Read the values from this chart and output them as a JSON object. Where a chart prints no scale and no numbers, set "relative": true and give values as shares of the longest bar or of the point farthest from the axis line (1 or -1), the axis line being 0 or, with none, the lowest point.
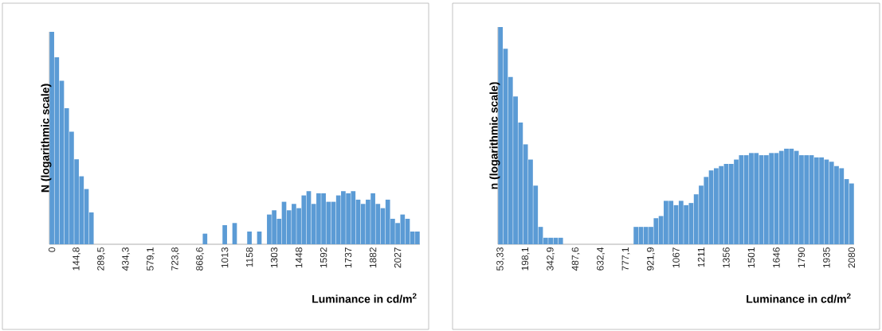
{
  "chart_data": [
    {
      "type": "bar",
      "relative": true,
      "color": "#5b9bd5",
      "ylabel": "N  (logarithmic scale)",
      "xlabel": "Luminance in cd/m$^{2}$",
      "categories": [
        "0",
        null,
        null,
        null,
        null,
        "144,8",
        null,
        null,
        null,
        null,
        "289,5",
        null,
        null,
        null,
        null,
        "434,3",
        null,
        null,
        null,
        null,
        "579,1",
        null,
        null,
        null,
        null,
        "723,8",
        null,
        null,
        null,
        null,
        "868,6",
        null,
        null,
        null,
        null,
        "1013",
        null,
        null,
        null,
        null,
        "1158",
        null,
        null,
        null,
        null,
        "1303",
        null,
        null,
        null,
        null,
        "1448",
        null,
        null,
        null,
        null,
        "1592",
        null,
        null,
        null,
        null,
        "1737",
        null,
        null,
        null,
        null,
        "1882",
        null,
        null,
        null,
        null,
        "2027",
        null,
        null,
        null,
        null
      ],
      "values": [
        1.0,
        0.88,
        0.77,
        0.64,
        0.53,
        0.4,
        0.32,
        0.26,
        0.15,
        0,
        0,
        0,
        0,
        0,
        0,
        0,
        0,
        0,
        0,
        0,
        0,
        0,
        0,
        0,
        0,
        0,
        0,
        0,
        0,
        0,
        0,
        0.05,
        0,
        0,
        0,
        0.09,
        0,
        0.1,
        0,
        0,
        0.06,
        0,
        0.06,
        0,
        0.14,
        0.16,
        0.12,
        0.2,
        0.16,
        0.19,
        0.17,
        0.23,
        0.25,
        0.19,
        0.24,
        0.24,
        0.2,
        0.2,
        0.23,
        0.25,
        0.24,
        0.25,
        0.21,
        0.19,
        0.21,
        0.24,
        0.19,
        0.17,
        0.21,
        0.12,
        0.1,
        0.14,
        0.12,
        0.06,
        0.06
      ]
    },
    {
      "type": "bar",
      "relative": true,
      "color": "#5b9bd5",
      "ylabel": "n  (logarithmic scale)",
      "xlabel": "Luminance in cd/m$^{2}$",
      "categories": [
        "53,33",
        null,
        null,
        null,
        null,
        "198,1",
        null,
        null,
        null,
        null,
        "342,9",
        null,
        null,
        null,
        null,
        "487,6",
        null,
        null,
        null,
        null,
        "632,4",
        null,
        null,
        null,
        null,
        "777,1",
        null,
        null,
        null,
        null,
        "921,9",
        null,
        null,
        null,
        null,
        "1067",
        null,
        null,
        null,
        null,
        "1211",
        null,
        null,
        null,
        null,
        "1356",
        null,
        null,
        null,
        null,
        "1501",
        null,
        null,
        null,
        null,
        "1646",
        null,
        null,
        null,
        null,
        "1790",
        null,
        null,
        null,
        null,
        "1935",
        null,
        null,
        null,
        null,
        "2080"
      ],
      "values": [
        1.0,
        0.9,
        0.77,
        0.68,
        0.56,
        0.46,
        0.39,
        0.27,
        0.08,
        0.03,
        0.03,
        0.03,
        0.03,
        0,
        0,
        0,
        0,
        0,
        0,
        0,
        0,
        0,
        0,
        0,
        0,
        0,
        0,
        0.08,
        0.08,
        0.08,
        0.08,
        0.12,
        0.13,
        0.2,
        0.2,
        0.18,
        0.2,
        0.18,
        0.19,
        0.23,
        0.27,
        0.31,
        0.34,
        0.35,
        0.36,
        0.37,
        0.37,
        0.39,
        0.41,
        0.41,
        0.42,
        0.42,
        0.41,
        0.41,
        0.42,
        0.42,
        0.43,
        0.44,
        0.44,
        0.43,
        0.41,
        0.41,
        0.41,
        0.4,
        0.4,
        0.39,
        0.38,
        0.36,
        0.35,
        0.3,
        0.28
      ]
    }
  ]
}
